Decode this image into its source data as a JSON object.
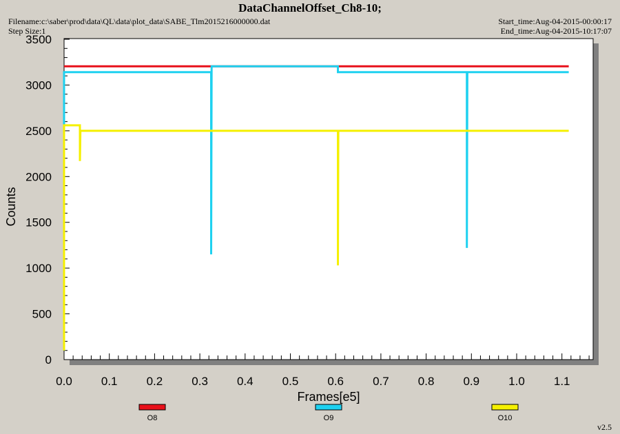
{
  "header": {
    "title": "DataChannelOffset_Ch8-10;",
    "filename": "Filename:c:\\saber\\prod\\data\\QL\\data\\plot_data\\SABE_Tlm2015216000000.dat",
    "step_size": "Step Size:1",
    "start_time": "Start_time:Aug-04-2015-00:00:17",
    "end_time": "End_time:Aug-04-2015-10:17:07"
  },
  "version": "v2.5",
  "chart_data": {
    "type": "line",
    "title": "DataChannelOffset_Ch8-10;",
    "xlabel": "Frames[e5]",
    "ylabel": "Counts",
    "xlim": [
      0,
      1.17
    ],
    "ylim": [
      0,
      3500
    ],
    "xticks": [
      "0.0",
      "0.1",
      "0.2",
      "0.3",
      "0.4",
      "0.5",
      "0.6",
      "0.7",
      "0.8",
      "0.9",
      "1.0",
      "1.1"
    ],
    "yticks": [
      "0",
      "500",
      "1000",
      "1500",
      "2000",
      "2500",
      "3000",
      "3500"
    ],
    "grid": false,
    "legend_position": "bottom",
    "series": [
      {
        "name": "O8",
        "color": "#e8101a",
        "points": [
          [
            0.0,
            3205
          ],
          [
            1.115,
            3205
          ]
        ]
      },
      {
        "name": "O9",
        "color": "#1ed1f0",
        "points": [
          [
            0.0,
            100
          ],
          [
            0.0,
            3140
          ],
          [
            0.325,
            3140
          ],
          [
            0.325,
            1150
          ],
          [
            0.326,
            3205
          ],
          [
            0.605,
            3205
          ],
          [
            0.605,
            3140
          ],
          [
            0.89,
            3140
          ],
          [
            0.89,
            1220
          ],
          [
            0.891,
            3140
          ],
          [
            1.115,
            3140
          ]
        ]
      },
      {
        "name": "O10",
        "color": "#f5f000",
        "points": [
          [
            0.0,
            100
          ],
          [
            0.0,
            2560
          ],
          [
            0.035,
            2560
          ],
          [
            0.035,
            2170
          ],
          [
            0.036,
            2500
          ],
          [
            0.605,
            2500
          ],
          [
            0.605,
            1030
          ],
          [
            0.606,
            2500
          ],
          [
            1.115,
            2500
          ]
        ]
      }
    ]
  }
}
